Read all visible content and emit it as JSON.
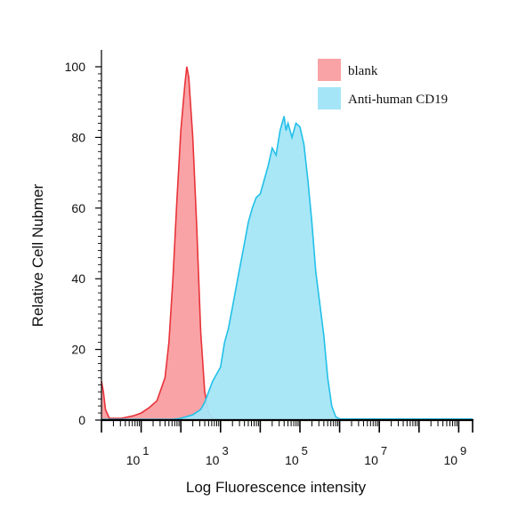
{
  "chart_data": {
    "type": "area",
    "xlabel": "Log Fluorescence intensity",
    "ylabel": "Relative Cell Nubmer",
    "xscale": "log",
    "xlim_exponent": [
      0,
      9.35
    ],
    "ylim": [
      0,
      100
    ],
    "yticks": [
      0,
      20,
      40,
      60,
      80,
      100
    ],
    "ytick_labels": [
      "0",
      "20",
      "40",
      "60",
      "80",
      "100"
    ],
    "xtick_labels": [
      {
        "base": "10",
        "exp": "1"
      },
      {
        "base": "10",
        "exp": "3"
      },
      {
        "base": "10",
        "exp": "5"
      },
      {
        "base": "10",
        "exp": "7"
      },
      {
        "base": "10",
        "exp": "9"
      }
    ],
    "xtick_exponents": [
      1,
      3,
      5,
      7,
      9
    ],
    "legend_position": "top-right",
    "legend": [
      {
        "label": "blank",
        "color": "#f9a3a6"
      },
      {
        "label": "Anti-human CD19",
        "color": "#a4e6f7"
      }
    ],
    "series": [
      {
        "name": "blank",
        "fill": "#f9a3a6",
        "stroke": "#e8333a",
        "points": [
          [
            0.0,
            11
          ],
          [
            0.05,
            8
          ],
          [
            0.1,
            3
          ],
          [
            0.2,
            0.5
          ],
          [
            0.5,
            0.5
          ],
          [
            0.8,
            1.2
          ],
          [
            1.0,
            2
          ],
          [
            1.2,
            3.5
          ],
          [
            1.4,
            5.5
          ],
          [
            1.6,
            12
          ],
          [
            1.7,
            22
          ],
          [
            1.8,
            40
          ],
          [
            1.9,
            62
          ],
          [
            2.0,
            82
          ],
          [
            2.1,
            95
          ],
          [
            2.15,
            100
          ],
          [
            2.2,
            97
          ],
          [
            2.3,
            80
          ],
          [
            2.4,
            55
          ],
          [
            2.5,
            25
          ],
          [
            2.6,
            8
          ],
          [
            2.7,
            2
          ],
          [
            2.8,
            0.6
          ],
          [
            3.0,
            0.2
          ],
          [
            9.35,
            0.2
          ]
        ]
      },
      {
        "name": "Anti-human CD19",
        "fill": "#a4e6f7",
        "stroke": "#22c0e8",
        "points": [
          [
            0.0,
            0.2
          ],
          [
            1.8,
            0.2
          ],
          [
            2.0,
            0.5
          ],
          [
            2.3,
            1.5
          ],
          [
            2.5,
            3
          ],
          [
            2.6,
            5
          ],
          [
            2.7,
            8
          ],
          [
            2.8,
            11
          ],
          [
            3.0,
            15
          ],
          [
            3.1,
            22
          ],
          [
            3.2,
            26
          ],
          [
            3.3,
            32
          ],
          [
            3.4,
            38
          ],
          [
            3.5,
            44
          ],
          [
            3.6,
            50
          ],
          [
            3.7,
            56
          ],
          [
            3.8,
            60
          ],
          [
            3.9,
            63
          ],
          [
            4.0,
            64
          ],
          [
            4.1,
            68
          ],
          [
            4.2,
            72
          ],
          [
            4.3,
            77
          ],
          [
            4.4,
            75
          ],
          [
            4.5,
            82
          ],
          [
            4.6,
            86
          ],
          [
            4.65,
            82
          ],
          [
            4.7,
            84
          ],
          [
            4.8,
            80
          ],
          [
            4.9,
            84
          ],
          [
            5.0,
            83
          ],
          [
            5.1,
            78
          ],
          [
            5.2,
            68
          ],
          [
            5.3,
            56
          ],
          [
            5.4,
            42
          ],
          [
            5.5,
            33
          ],
          [
            5.6,
            24
          ],
          [
            5.7,
            12
          ],
          [
            5.8,
            4
          ],
          [
            5.9,
            1
          ],
          [
            6.0,
            0.3
          ],
          [
            9.35,
            0.3
          ]
        ]
      }
    ]
  }
}
